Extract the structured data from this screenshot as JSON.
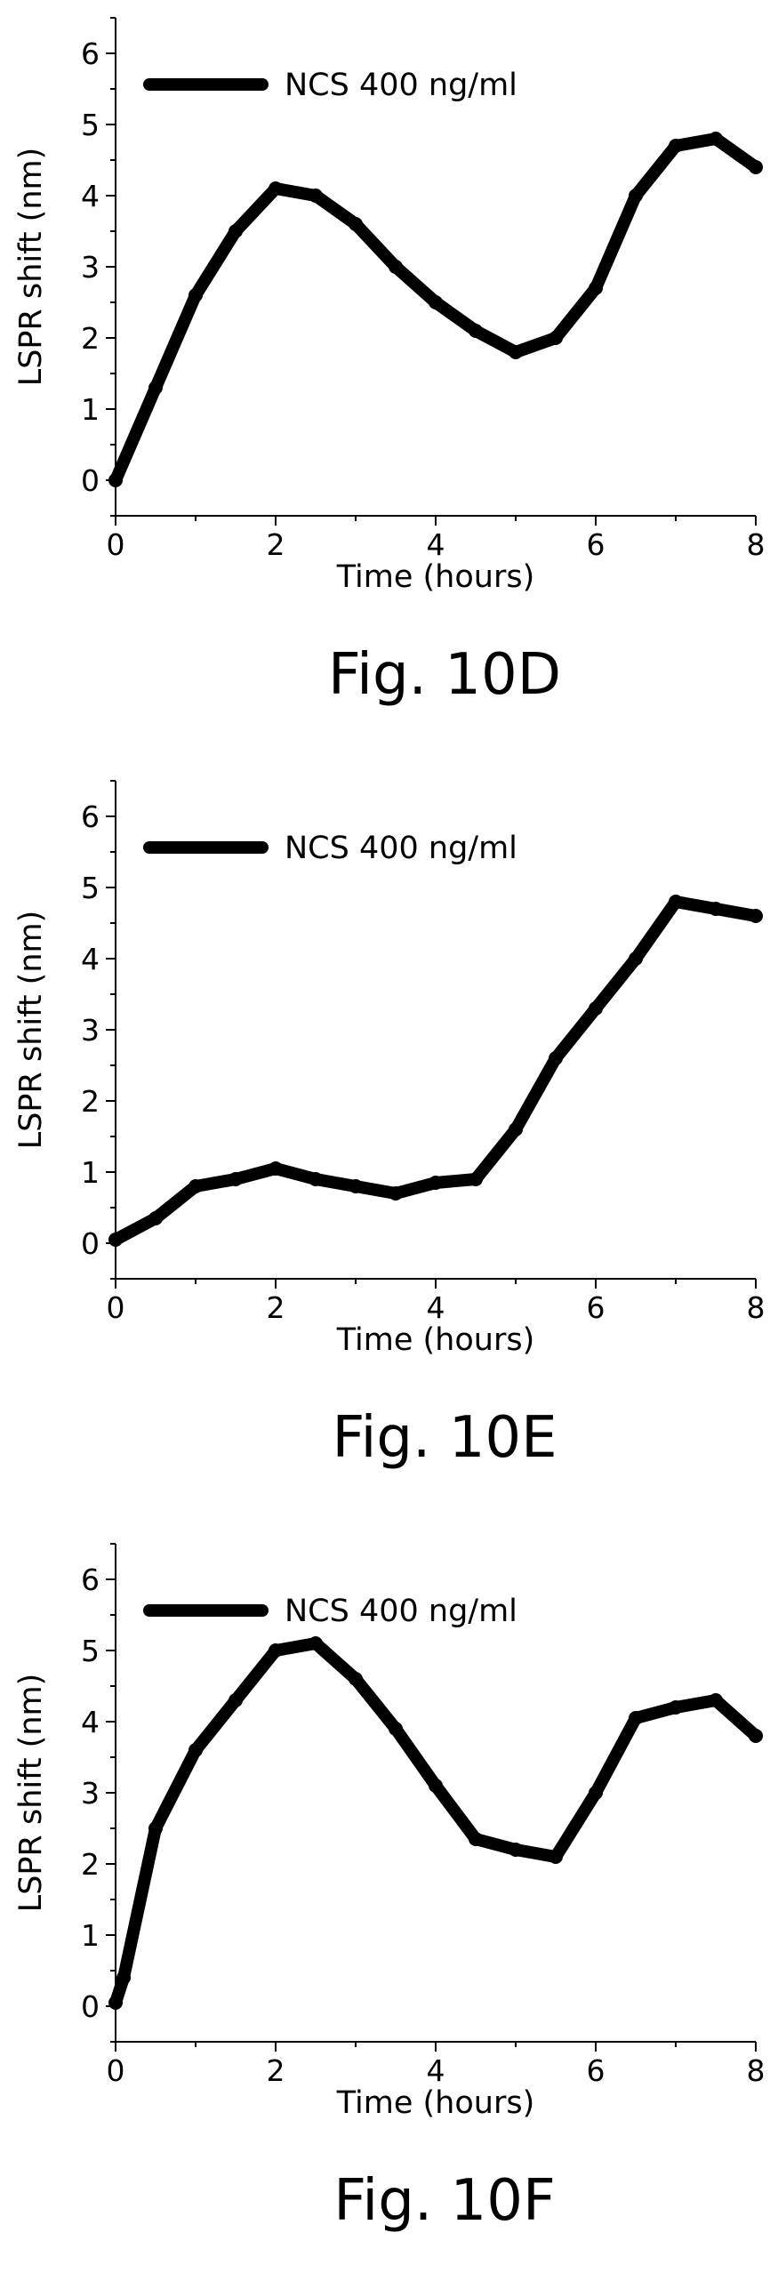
{
  "chart_data": [
    {
      "type": "line",
      "caption": "Fig. 10D",
      "xlabel": "Time (hours)",
      "ylabel": "LSPR shift (nm)",
      "xlim": [
        0,
        8
      ],
      "ylim": [
        -0.5,
        6.5
      ],
      "xticks": [
        0,
        2,
        4,
        6,
        8
      ],
      "yticks": [
        0,
        1,
        2,
        3,
        4,
        5,
        6
      ],
      "legend": "top-left",
      "grid": false,
      "series": [
        {
          "name": "NCS 400 ng/ml",
          "color": "#000000",
          "x": [
            0,
            0.5,
            1,
            1.5,
            2,
            2.5,
            3,
            3.5,
            4,
            4.5,
            5,
            5.5,
            6,
            6.5,
            7,
            7.5,
            8
          ],
          "y": [
            0,
            1.3,
            2.6,
            3.5,
            4.1,
            4.0,
            3.6,
            3.0,
            2.5,
            2.1,
            1.8,
            2.0,
            2.7,
            4.0,
            4.7,
            4.8,
            4.4
          ]
        }
      ]
    },
    {
      "type": "line",
      "caption": "Fig. 10E",
      "xlabel": "Time (hours)",
      "ylabel": "LSPR shift (nm)",
      "xlim": [
        0,
        8
      ],
      "ylim": [
        -0.5,
        6.5
      ],
      "xticks": [
        0,
        2,
        4,
        6,
        8
      ],
      "yticks": [
        0,
        1,
        2,
        3,
        4,
        5,
        6
      ],
      "legend": "top-left",
      "grid": false,
      "series": [
        {
          "name": "NCS 400 ng/ml",
          "color": "#000000",
          "x": [
            0,
            0.5,
            1,
            1.5,
            2,
            2.5,
            3,
            3.5,
            4,
            4.5,
            5,
            5.5,
            6,
            6.5,
            7,
            7.5,
            8
          ],
          "y": [
            0.05,
            0.35,
            0.8,
            0.9,
            1.05,
            0.9,
            0.8,
            0.7,
            0.85,
            0.9,
            1.6,
            2.6,
            3.3,
            4.0,
            4.8,
            4.7,
            4.6
          ]
        }
      ]
    },
    {
      "type": "line",
      "caption": "Fig. 10F",
      "xlabel": "Time (hours)",
      "ylabel": "LSPR shift (nm)",
      "xlim": [
        0,
        8
      ],
      "ylim": [
        -0.5,
        6.5
      ],
      "xticks": [
        0,
        2,
        4,
        6,
        8
      ],
      "yticks": [
        0,
        1,
        2,
        3,
        4,
        5,
        6
      ],
      "legend": "top-left",
      "grid": false,
      "series": [
        {
          "name": "NCS 400 ng/ml",
          "color": "#000000",
          "x": [
            0,
            0.1,
            0.5,
            1,
            1.5,
            2,
            2.5,
            3,
            3.5,
            4,
            4.5,
            5,
            5.5,
            6,
            6.5,
            7,
            7.5,
            8
          ],
          "y": [
            0.05,
            0.4,
            2.5,
            3.6,
            4.3,
            5.0,
            5.1,
            4.6,
            3.9,
            3.1,
            2.35,
            2.2,
            2.1,
            3.0,
            4.05,
            4.2,
            4.3,
            3.8
          ]
        }
      ]
    }
  ]
}
